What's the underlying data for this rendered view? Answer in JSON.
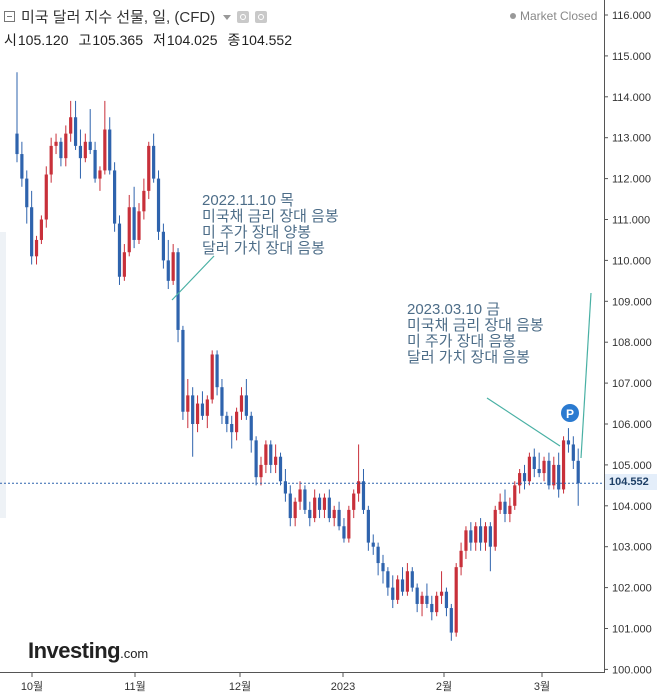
{
  "header": {
    "title": "미국 달러 지수 선물, 일, (CFD)",
    "ohlc": [
      {
        "label": "시",
        "value": "105.120"
      },
      {
        "label": "고",
        "value": "105.365"
      },
      {
        "label": "저",
        "value": "104.025"
      },
      {
        "label": "종",
        "value": "104.552"
      }
    ],
    "market_status": "Market Closed"
  },
  "logo": {
    "main": "Investing",
    "sub": ".com"
  },
  "annotations": [
    {
      "date": "2022.11.10 목",
      "lines": [
        "미국채 금리 장대 음봉",
        "미 주가 장대 양봉",
        "달러 가치 장대 음봉"
      ]
    },
    {
      "date": "2023.03.10 금",
      "lines": [
        "미국채 금리 장대 음봉",
        "미 주가 장대 음봉",
        "달러 가치 장대 음봉"
      ]
    }
  ],
  "event_marker": {
    "label": "P"
  },
  "current_price_label": "104.552",
  "colors": {
    "up": "#c8303a",
    "down": "#2e63ad",
    "annotation": "#4d6d88",
    "arrow": "#49b0a4",
    "price_line": "#2e63ad"
  },
  "chart_data": {
    "type": "candlestick",
    "title": "미국 달러 지수 선물, 일, (CFD)",
    "ylim": [
      100.0,
      116.0
    ],
    "y_ticks": [
      "100.000",
      "101.000",
      "102.000",
      "103.000",
      "104.000",
      "105.000",
      "106.000",
      "107.000",
      "108.000",
      "109.000",
      "110.000",
      "111.000",
      "112.000",
      "113.000",
      "114.000",
      "115.000",
      "116.000"
    ],
    "x_tick_labels": [
      "10월",
      "11월",
      "12월",
      "2023",
      "2월",
      "3월"
    ],
    "last_close": 104.552,
    "candles": [
      {
        "o": 113.1,
        "h": 114.6,
        "l": 112.4,
        "c": 112.6
      },
      {
        "o": 112.6,
        "h": 112.9,
        "l": 111.8,
        "c": 112.0
      },
      {
        "o": 112.0,
        "h": 112.2,
        "l": 110.9,
        "c": 111.3
      },
      {
        "o": 111.3,
        "h": 111.7,
        "l": 109.9,
        "c": 110.1
      },
      {
        "o": 110.1,
        "h": 110.6,
        "l": 109.9,
        "c": 110.5
      },
      {
        "o": 110.5,
        "h": 111.1,
        "l": 110.4,
        "c": 111.0
      },
      {
        "o": 111.0,
        "h": 112.3,
        "l": 110.8,
        "c": 112.1
      },
      {
        "o": 112.1,
        "h": 113.0,
        "l": 111.9,
        "c": 112.8
      },
      {
        "o": 112.8,
        "h": 113.1,
        "l": 112.6,
        "c": 112.9
      },
      {
        "o": 112.9,
        "h": 113.0,
        "l": 112.3,
        "c": 112.5
      },
      {
        "o": 112.5,
        "h": 113.3,
        "l": 112.3,
        "c": 113.1
      },
      {
        "o": 113.1,
        "h": 113.9,
        "l": 112.9,
        "c": 113.5
      },
      {
        "o": 113.5,
        "h": 113.9,
        "l": 112.7,
        "c": 112.8
      },
      {
        "o": 112.8,
        "h": 113.2,
        "l": 112.0,
        "c": 112.5
      },
      {
        "o": 112.5,
        "h": 113.1,
        "l": 112.4,
        "c": 112.9
      },
      {
        "o": 112.9,
        "h": 113.7,
        "l": 112.6,
        "c": 112.7
      },
      {
        "o": 112.7,
        "h": 112.9,
        "l": 111.9,
        "c": 112.0
      },
      {
        "o": 112.0,
        "h": 112.3,
        "l": 111.7,
        "c": 112.2
      },
      {
        "o": 112.2,
        "h": 113.9,
        "l": 112.1,
        "c": 113.2
      },
      {
        "o": 113.2,
        "h": 113.5,
        "l": 112.1,
        "c": 112.2
      },
      {
        "o": 112.2,
        "h": 112.4,
        "l": 110.7,
        "c": 110.9
      },
      {
        "o": 110.9,
        "h": 111.1,
        "l": 109.4,
        "c": 109.6
      },
      {
        "o": 109.6,
        "h": 110.4,
        "l": 109.5,
        "c": 110.2
      },
      {
        "o": 110.2,
        "h": 111.6,
        "l": 110.1,
        "c": 111.3
      },
      {
        "o": 111.3,
        "h": 111.8,
        "l": 110.3,
        "c": 110.5
      },
      {
        "o": 110.5,
        "h": 111.4,
        "l": 110.4,
        "c": 111.2
      },
      {
        "o": 111.2,
        "h": 112.0,
        "l": 111.0,
        "c": 111.7
      },
      {
        "o": 111.7,
        "h": 112.9,
        "l": 111.5,
        "c": 112.8
      },
      {
        "o": 112.8,
        "h": 113.1,
        "l": 111.9,
        "c": 112.0
      },
      {
        "o": 112.0,
        "h": 112.2,
        "l": 110.5,
        "c": 110.7
      },
      {
        "o": 110.7,
        "h": 110.9,
        "l": 109.8,
        "c": 110.0
      },
      {
        "o": 110.0,
        "h": 110.5,
        "l": 109.3,
        "c": 109.5
      },
      {
        "o": 109.5,
        "h": 110.4,
        "l": 109.4,
        "c": 110.2
      },
      {
        "o": 110.2,
        "h": 110.3,
        "l": 108.0,
        "c": 108.3
      },
      {
        "o": 108.3,
        "h": 108.4,
        "l": 106.1,
        "c": 106.3
      },
      {
        "o": 106.3,
        "h": 107.1,
        "l": 105.9,
        "c": 106.7
      },
      {
        "o": 106.7,
        "h": 106.9,
        "l": 105.2,
        "c": 106.0
      },
      {
        "o": 106.0,
        "h": 106.7,
        "l": 105.8,
        "c": 106.5
      },
      {
        "o": 106.5,
        "h": 106.8,
        "l": 106.1,
        "c": 106.2
      },
      {
        "o": 106.2,
        "h": 106.7,
        "l": 105.9,
        "c": 106.6
      },
      {
        "o": 106.6,
        "h": 107.8,
        "l": 106.5,
        "c": 107.7
      },
      {
        "o": 107.7,
        "h": 107.8,
        "l": 106.7,
        "c": 106.9
      },
      {
        "o": 106.9,
        "h": 107.1,
        "l": 106.0,
        "c": 106.2
      },
      {
        "o": 106.2,
        "h": 106.3,
        "l": 105.8,
        "c": 106.0
      },
      {
        "o": 106.0,
        "h": 106.2,
        "l": 105.4,
        "c": 105.8
      },
      {
        "o": 105.8,
        "h": 106.4,
        "l": 105.6,
        "c": 106.3
      },
      {
        "o": 106.3,
        "h": 106.9,
        "l": 106.1,
        "c": 106.7
      },
      {
        "o": 106.7,
        "h": 107.1,
        "l": 106.1,
        "c": 106.2
      },
      {
        "o": 106.2,
        "h": 106.3,
        "l": 105.3,
        "c": 105.6
      },
      {
        "o": 105.6,
        "h": 105.7,
        "l": 104.5,
        "c": 104.7
      },
      {
        "o": 104.7,
        "h": 105.2,
        "l": 104.5,
        "c": 105.0
      },
      {
        "o": 105.0,
        "h": 105.6,
        "l": 104.8,
        "c": 105.5
      },
      {
        "o": 105.5,
        "h": 105.6,
        "l": 104.8,
        "c": 105.0
      },
      {
        "o": 105.0,
        "h": 105.5,
        "l": 104.8,
        "c": 105.2
      },
      {
        "o": 105.2,
        "h": 105.3,
        "l": 104.5,
        "c": 104.6
      },
      {
        "o": 104.6,
        "h": 104.9,
        "l": 104.1,
        "c": 104.3
      },
      {
        "o": 104.3,
        "h": 104.5,
        "l": 103.5,
        "c": 103.7
      },
      {
        "o": 103.7,
        "h": 104.2,
        "l": 103.5,
        "c": 104.1
      },
      {
        "o": 104.1,
        "h": 104.6,
        "l": 103.9,
        "c": 104.4
      },
      {
        "o": 104.4,
        "h": 104.5,
        "l": 103.8,
        "c": 103.9
      },
      {
        "o": 103.9,
        "h": 104.1,
        "l": 103.5,
        "c": 103.7
      },
      {
        "o": 103.7,
        "h": 104.4,
        "l": 103.6,
        "c": 104.2
      },
      {
        "o": 104.2,
        "h": 104.3,
        "l": 103.7,
        "c": 103.9
      },
      {
        "o": 103.9,
        "h": 104.3,
        "l": 103.7,
        "c": 104.2
      },
      {
        "o": 104.2,
        "h": 104.4,
        "l": 103.6,
        "c": 103.7
      },
      {
        "o": 103.7,
        "h": 104.0,
        "l": 103.5,
        "c": 103.9
      },
      {
        "o": 103.9,
        "h": 104.1,
        "l": 103.4,
        "c": 103.5
      },
      {
        "o": 103.5,
        "h": 103.7,
        "l": 103.1,
        "c": 103.2
      },
      {
        "o": 103.2,
        "h": 104.0,
        "l": 103.1,
        "c": 103.9
      },
      {
        "o": 103.9,
        "h": 104.4,
        "l": 103.7,
        "c": 104.3
      },
      {
        "o": 104.3,
        "h": 105.5,
        "l": 104.1,
        "c": 104.6
      },
      {
        "o": 104.6,
        "h": 104.9,
        "l": 103.8,
        "c": 103.9
      },
      {
        "o": 103.9,
        "h": 104.0,
        "l": 102.9,
        "c": 103.1
      },
      {
        "o": 103.1,
        "h": 103.3,
        "l": 102.8,
        "c": 103.0
      },
      {
        "o": 103.0,
        "h": 103.1,
        "l": 102.3,
        "c": 102.6
      },
      {
        "o": 102.6,
        "h": 102.8,
        "l": 102.1,
        "c": 102.4
      },
      {
        "o": 102.4,
        "h": 102.5,
        "l": 101.8,
        "c": 102.0
      },
      {
        "o": 102.0,
        "h": 102.3,
        "l": 101.5,
        "c": 101.7
      },
      {
        "o": 101.7,
        "h": 102.3,
        "l": 101.6,
        "c": 102.2
      },
      {
        "o": 102.2,
        "h": 102.5,
        "l": 101.8,
        "c": 101.9
      },
      {
        "o": 101.9,
        "h": 102.6,
        "l": 101.8,
        "c": 102.4
      },
      {
        "o": 102.4,
        "h": 102.5,
        "l": 101.9,
        "c": 102.0
      },
      {
        "o": 102.0,
        "h": 102.1,
        "l": 101.4,
        "c": 101.6
      },
      {
        "o": 101.6,
        "h": 101.9,
        "l": 101.3,
        "c": 101.8
      },
      {
        "o": 101.8,
        "h": 102.1,
        "l": 101.5,
        "c": 101.6
      },
      {
        "o": 101.6,
        "h": 101.8,
        "l": 101.2,
        "c": 101.4
      },
      {
        "o": 101.4,
        "h": 101.9,
        "l": 101.3,
        "c": 101.8
      },
      {
        "o": 101.8,
        "h": 102.4,
        "l": 101.6,
        "c": 101.9
      },
      {
        "o": 101.9,
        "h": 102.0,
        "l": 101.3,
        "c": 101.5
      },
      {
        "o": 101.5,
        "h": 101.6,
        "l": 100.7,
        "c": 100.9
      },
      {
        "o": 100.9,
        "h": 102.6,
        "l": 100.8,
        "c": 102.5
      },
      {
        "o": 102.5,
        "h": 103.1,
        "l": 102.3,
        "c": 102.9
      },
      {
        "o": 102.9,
        "h": 103.5,
        "l": 102.7,
        "c": 103.4
      },
      {
        "o": 103.4,
        "h": 103.6,
        "l": 102.9,
        "c": 103.1
      },
      {
        "o": 103.1,
        "h": 103.6,
        "l": 102.9,
        "c": 103.5
      },
      {
        "o": 103.5,
        "h": 103.7,
        "l": 102.9,
        "c": 103.1
      },
      {
        "o": 103.1,
        "h": 103.6,
        "l": 102.9,
        "c": 103.5
      },
      {
        "o": 103.5,
        "h": 103.6,
        "l": 102.4,
        "c": 103.0
      },
      {
        "o": 103.0,
        "h": 104.0,
        "l": 102.9,
        "c": 103.9
      },
      {
        "o": 103.9,
        "h": 104.3,
        "l": 103.8,
        "c": 104.1
      },
      {
        "o": 104.1,
        "h": 104.4,
        "l": 103.6,
        "c": 103.8
      },
      {
        "o": 103.8,
        "h": 104.2,
        "l": 103.6,
        "c": 104.0
      },
      {
        "o": 104.0,
        "h": 104.6,
        "l": 103.9,
        "c": 104.5
      },
      {
        "o": 104.5,
        "h": 104.9,
        "l": 104.3,
        "c": 104.8
      },
      {
        "o": 104.8,
        "h": 105.0,
        "l": 104.4,
        "c": 104.6
      },
      {
        "o": 104.6,
        "h": 105.3,
        "l": 104.5,
        "c": 105.2
      },
      {
        "o": 105.2,
        "h": 105.4,
        "l": 104.7,
        "c": 104.9
      },
      {
        "o": 104.9,
        "h": 105.3,
        "l": 104.7,
        "c": 104.8
      },
      {
        "o": 104.8,
        "h": 105.2,
        "l": 104.6,
        "c": 105.1
      },
      {
        "o": 105.1,
        "h": 105.3,
        "l": 104.4,
        "c": 104.5
      },
      {
        "o": 104.5,
        "h": 105.2,
        "l": 104.4,
        "c": 105.0
      },
      {
        "o": 105.0,
        "h": 105.3,
        "l": 104.2,
        "c": 104.4
      },
      {
        "o": 104.4,
        "h": 105.7,
        "l": 104.3,
        "c": 105.6
      },
      {
        "o": 105.6,
        "h": 105.9,
        "l": 105.3,
        "c": 105.5
      },
      {
        "o": 105.5,
        "h": 105.7,
        "l": 104.9,
        "c": 105.1
      },
      {
        "o": 105.1,
        "h": 105.4,
        "l": 104.0,
        "c": 104.552
      }
    ]
  }
}
